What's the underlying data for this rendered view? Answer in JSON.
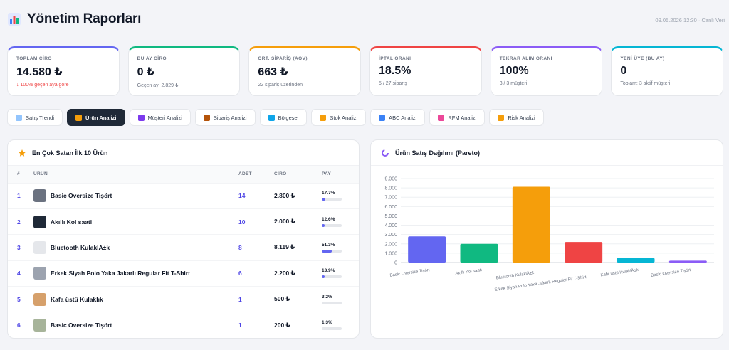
{
  "header": {
    "title": "Yönetim Raporları",
    "meta": "09.05.2026 12:30 · Canlı Veri"
  },
  "kpis": [
    {
      "label": "TOPLAM CİRO",
      "value": "14.580 ₺",
      "sub": "↓ 100% geçen aya göre",
      "accent": "#6366f1",
      "negative": true
    },
    {
      "label": "BU AY CİRO",
      "value": "0 ₺",
      "sub": "Geçen ay: 2.829 ₺",
      "accent": "#10b981",
      "negative": false
    },
    {
      "label": "ORT. SİPARİŞ (AOV)",
      "value": "663 ₺",
      "sub": "22 sipariş üzerinden",
      "accent": "#f59e0b",
      "negative": false
    },
    {
      "label": "İPTAL ORANI",
      "value": "18.5%",
      "sub": "5 / 27 sipariş",
      "accent": "#ef4444",
      "negative": false
    },
    {
      "label": "TEKRAR ALIM ORANI",
      "value": "100%",
      "sub": "3 / 3 müşteri",
      "accent": "#8b5cf6",
      "negative": false
    },
    {
      "label": "YENİ ÜYE (BU AY)",
      "value": "0",
      "sub": "Toplam: 3 aktif müşteri",
      "accent": "#06b6d4",
      "negative": false
    }
  ],
  "tabs": [
    {
      "label": "Satış Trendi",
      "icon": "chart-icon",
      "color": "#93c5fd",
      "active": false
    },
    {
      "label": "Ürün Analizi",
      "icon": "trophy-icon",
      "color": "#f59e0b",
      "active": true
    },
    {
      "label": "Müşteri Analizi",
      "icon": "user-icon",
      "color": "#7c3aed",
      "active": false
    },
    {
      "label": "Sipariş Analizi",
      "icon": "box-icon",
      "color": "#b45309",
      "active": false
    },
    {
      "label": "Bölgesel",
      "icon": "globe-icon",
      "color": "#0ea5e9",
      "active": false
    },
    {
      "label": "Stok Analizi",
      "icon": "bar-chart-icon",
      "color": "#f59e0b",
      "active": false
    },
    {
      "label": "ABC Analizi",
      "icon": "abc-icon",
      "color": "#3b82f6",
      "active": false
    },
    {
      "label": "RFM Analizi",
      "icon": "brain-icon",
      "color": "#ec4899",
      "active": false
    },
    {
      "label": "Risk Analizi",
      "icon": "warning-icon",
      "color": "#f59e0b",
      "active": false
    }
  ],
  "top_products": {
    "title": "En Çok Satan İlk 10 Ürün",
    "columns": [
      "#",
      "ÜRÜN",
      "ADET",
      "CİRO",
      "PAY"
    ],
    "rows": [
      {
        "idx": "1",
        "name": "Basic Oversize Tişört",
        "qty": "14",
        "revenue": "2.800 ₺",
        "share": "17.7%",
        "share_num": 17.7,
        "thumb": "#6b7280"
      },
      {
        "idx": "2",
        "name": "Akıllı Kol saati",
        "qty": "10",
        "revenue": "2.000 ₺",
        "share": "12.6%",
        "share_num": 12.6,
        "thumb": "#1f2937"
      },
      {
        "idx": "3",
        "name": "Bluetooth KulaklÄ±k",
        "qty": "8",
        "revenue": "8.119 ₺",
        "share": "51.3%",
        "share_num": 51.3,
        "thumb": "#e5e7eb"
      },
      {
        "idx": "4",
        "name": "Erkek Siyah Polo Yaka Jakarlı Regular Fit T-Shirt",
        "qty": "6",
        "revenue": "2.200 ₺",
        "share": "13.9%",
        "share_num": 13.9,
        "thumb": "#9ca3af"
      },
      {
        "idx": "5",
        "name": "Kafa üstü Kulaklık",
        "qty": "1",
        "revenue": "500 ₺",
        "share": "3.2%",
        "share_num": 3.2,
        "thumb": "#d6a06b"
      },
      {
        "idx": "6",
        "name": "Basic Oversize Tişört",
        "qty": "1",
        "revenue": "200 ₺",
        "share": "1.3%",
        "share_num": 1.3,
        "thumb": "#a7b49a"
      }
    ]
  },
  "chart_data": {
    "type": "bar",
    "title": "Ürün Satış Dağılımı (Pareto)",
    "categories": [
      "Basic Oversize Tişört",
      "Akıllı Kol saati",
      "Bluetooth KulaklÄ±k",
      "Erkek Siyah Polo Yaka Jakarlı Regular Fit T-Shirt",
      "Kafa üstü KulaklÄ±k",
      "Basic Oversize Tişört"
    ],
    "values": [
      2800,
      2000,
      8119,
      2200,
      500,
      200
    ],
    "colors": [
      "#6366f1",
      "#10b981",
      "#f59e0b",
      "#ef4444",
      "#06b6d4",
      "#8b5cf6"
    ],
    "ylim": [
      0,
      9000
    ],
    "yticks": [
      "0",
      "1.000",
      "2.000",
      "3.000",
      "4.000",
      "5.000",
      "6.000",
      "7.000",
      "8.000",
      "9.000"
    ],
    "grid": true
  }
}
